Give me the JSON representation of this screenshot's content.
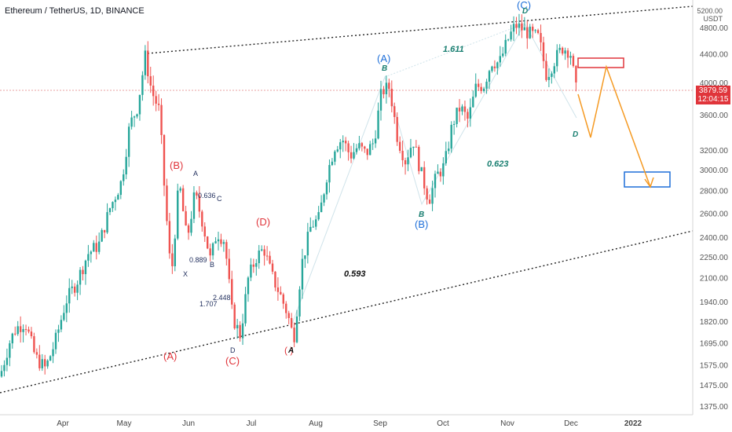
{
  "header": {
    "title": "Ethereum / TetherUS, 1D, BINANCE"
  },
  "axis_unit": {
    "line1": "5200.00",
    "line2": "USDT"
  },
  "price_tag": {
    "price": "3879.59",
    "timer": "12:04:15"
  },
  "colors": {
    "up": "#26a69a",
    "down": "#ef5350",
    "red_label": "#e0353b",
    "blue_label": "#1e6fd9",
    "orange": "#f59a23",
    "dark_label": "#1f2d5c",
    "teal_label": "#1a7f71"
  },
  "chart_data": {
    "type": "candlestick",
    "symbol": "Ethereum / TetherUS",
    "interval": "1D",
    "exchange": "BINANCE",
    "scale": "log",
    "ylim": [
      1375,
      5200
    ],
    "y_ticks": [
      1375,
      1475,
      1575,
      1695,
      1820,
      1940,
      2100,
      2250,
      2400,
      2600,
      2800,
      3000,
      3200,
      3600,
      4000,
      4400,
      4800
    ],
    "y_tick_labels": [
      "1375.00",
      "1475.00",
      "1575.00",
      "1695.00",
      "1820.00",
      "1940.00",
      "2100.00",
      "2250.00",
      "2400.00",
      "2600.00",
      "2800.00",
      "3000.00",
      "3200.00",
      "3600.00",
      "4000.00",
      "4400.00",
      "4800.00"
    ],
    "x_ticks": [
      "Apr",
      "May",
      "Jun",
      "Jul",
      "Aug",
      "Sep",
      "Oct",
      "Nov",
      "Dec",
      "2022"
    ],
    "price_path": [
      [
        0,
        1520
      ],
      [
        12,
        1700
      ],
      [
        20,
        1780
      ],
      [
        32,
        1820
      ],
      [
        45,
        1620
      ],
      [
        58,
        1560
      ],
      [
        70,
        1700
      ],
      [
        84,
        1950
      ],
      [
        98,
        2080
      ],
      [
        112,
        2280
      ],
      [
        126,
        2350
      ],
      [
        140,
        2650
      ],
      [
        155,
        2900
      ],
      [
        165,
        3480
      ],
      [
        175,
        3700
      ],
      [
        185,
        4380
      ],
      [
        193,
        3900
      ],
      [
        203,
        3650
      ],
      [
        210,
        2750
      ],
      [
        218,
        2100
      ],
      [
        228,
        2900
      ],
      [
        238,
        2380
      ],
      [
        248,
        2780
      ],
      [
        258,
        2530
      ],
      [
        268,
        2230
      ],
      [
        276,
        2450
      ],
      [
        286,
        2380
      ],
      [
        296,
        1850
      ],
      [
        306,
        1740
      ],
      [
        316,
        2100
      ],
      [
        326,
        2250
      ],
      [
        336,
        2320
      ],
      [
        346,
        2120
      ],
      [
        356,
        2000
      ],
      [
        366,
        1870
      ],
      [
        374,
        1720
      ],
      [
        384,
        2200
      ],
      [
        396,
        2500
      ],
      [
        406,
        2560
      ],
      [
        416,
        2950
      ],
      [
        426,
        3250
      ],
      [
        436,
        3330
      ],
      [
        446,
        3150
      ],
      [
        456,
        3250
      ],
      [
        466,
        3170
      ],
      [
        476,
        3300
      ],
      [
        486,
        3900
      ],
      [
        496,
        3950
      ],
      [
        506,
        3350
      ],
      [
        516,
        3100
      ],
      [
        526,
        3320
      ],
      [
        536,
        2980
      ],
      [
        546,
        2720
      ],
      [
        556,
        2950
      ],
      [
        566,
        3050
      ],
      [
        576,
        3500
      ],
      [
        586,
        3700
      ],
      [
        596,
        3540
      ],
      [
        606,
        3950
      ],
      [
        616,
        3980
      ],
      [
        626,
        4300
      ],
      [
        636,
        4280
      ],
      [
        646,
        4600
      ],
      [
        656,
        4850
      ],
      [
        666,
        4780
      ],
      [
        676,
        4700
      ],
      [
        686,
        4650
      ],
      [
        696,
        4100
      ],
      [
        706,
        4320
      ],
      [
        716,
        4500
      ],
      [
        726,
        4450
      ],
      [
        734,
        3880
      ]
    ],
    "annotations": {
      "red_wave": [
        "(A)",
        "(B)",
        "(C)",
        "(D)",
        "A"
      ],
      "blue_wave": [
        "(A)",
        "(B)",
        "(C)"
      ],
      "teal_wave": [
        "B",
        "B",
        "D",
        "D"
      ],
      "harmonic_letters": [
        "A",
        "C",
        "X",
        "B",
        "D"
      ],
      "ratios": [
        "0.636",
        "0.889",
        "1.707",
        "2.448",
        "0.593",
        "1.611",
        "0.623"
      ]
    }
  }
}
